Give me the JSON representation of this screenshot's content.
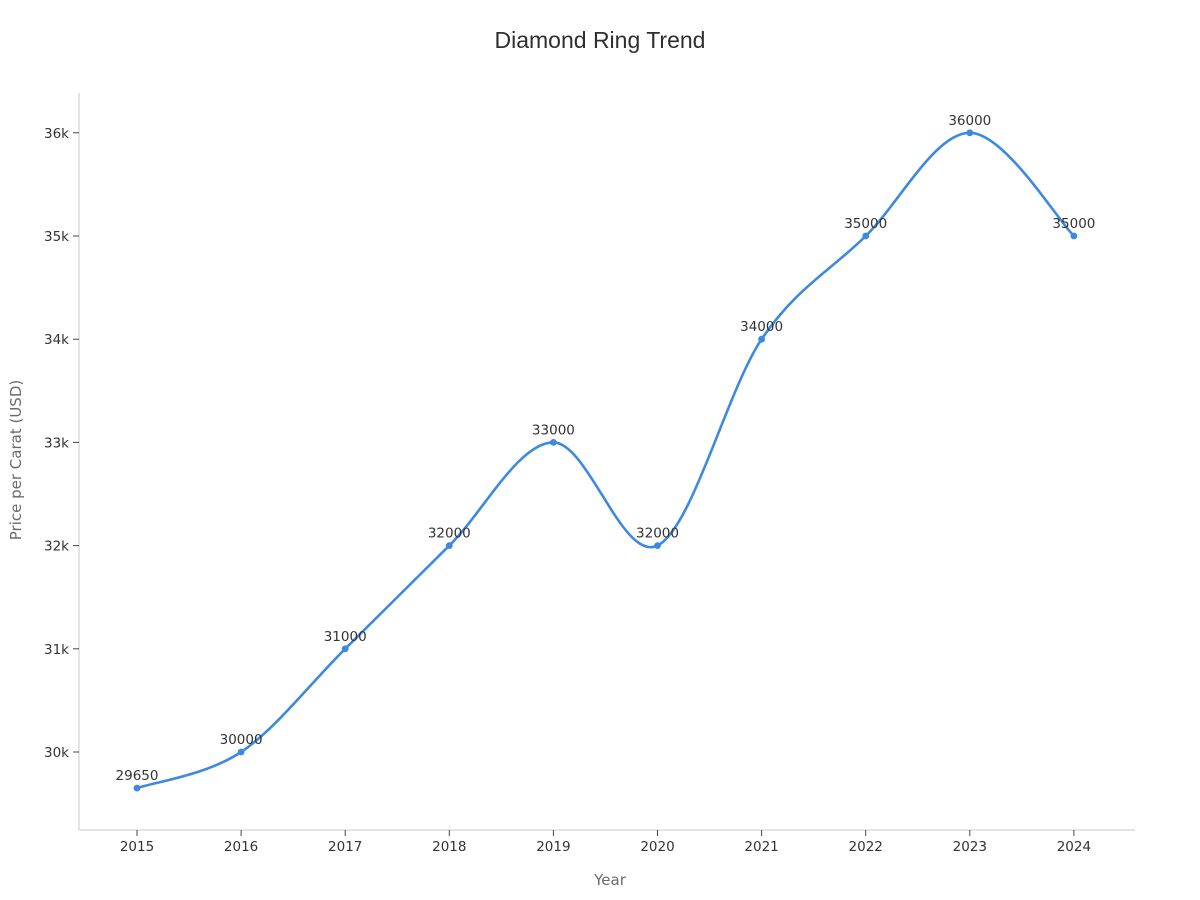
{
  "chart_data": {
    "type": "line",
    "title": "Diamond Ring Trend",
    "xlabel": "Year",
    "ylabel": "Price per Carat (USD)",
    "categories": [
      "2015",
      "2016",
      "2017",
      "2018",
      "2019",
      "2020",
      "2021",
      "2022",
      "2023",
      "2024"
    ],
    "values": [
      29650,
      30000,
      31000,
      32000,
      33000,
      32000,
      34000,
      35000,
      36000,
      35000
    ],
    "point_labels": [
      "29650",
      "30000",
      "31000",
      "32000",
      "33000",
      "32000",
      "34000",
      "35000",
      "36000",
      "35000"
    ],
    "series_name": "Price per Carat (USD)",
    "y_ticks": {
      "values": [
        30000,
        31000,
        32000,
        33000,
        34000,
        35000,
        36000
      ],
      "labels": [
        "30k",
        "31k",
        "32k",
        "33k",
        "34k",
        "35k",
        "36k"
      ]
    },
    "line_shape": "spline",
    "markers": true,
    "grid": false,
    "legend": false,
    "xlim": [
      "2015",
      "2024"
    ],
    "ylim": [
      29250,
      36380
    ]
  },
  "colors": {
    "background": "#ffffff",
    "line": "#3d89e0",
    "marker": "#3d89e0",
    "axis_line": "#d4d4d4",
    "tick_mark": "#444444",
    "tick_label": "#333333",
    "axis_title": "#6b6b6b",
    "title": "#2f2f2f",
    "data_label": "#333333"
  }
}
